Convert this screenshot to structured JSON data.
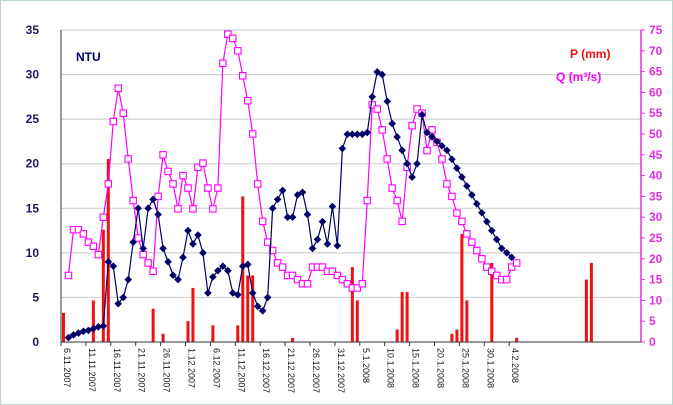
{
  "chart_data": {
    "type": "line",
    "x_start": "6.11.2007",
    "x_tick_labels": [
      "6.11.2007",
      "11.11.2007",
      "16.11.2007",
      "21.11.2007",
      "26.11.2007",
      "1.12.2007",
      "6.12.2007",
      "11.12.2007",
      "16.12.2007",
      "21.12.2007",
      "26.12.2007",
      "31.12.2007",
      "5.1.2008",
      "10.1.2008",
      "15.1.2008",
      "20.1.2008",
      "25.1.2008",
      "30.1.2008",
      "4.2.2008"
    ],
    "y_left": {
      "label": "NTU",
      "range": [
        0,
        35
      ],
      "ticks": [
        0,
        5,
        10,
        15,
        20,
        25,
        30,
        35
      ]
    },
    "y_right": {
      "labels": [
        "P (mm)",
        "Q (m³/s)"
      ],
      "range": [
        0,
        75
      ],
      "ticks": [
        0,
        5,
        10,
        15,
        20,
        25,
        30,
        35,
        40,
        45,
        50,
        55,
        60,
        65,
        70,
        75
      ]
    },
    "colors": {
      "ntu": "#000066",
      "precip": "#ee1111",
      "discharge": "#ff00ff",
      "gridline": "#c8c8c8",
      "axis_left": "#1a1a5e",
      "axis_right": "#e030e0"
    },
    "series": [
      {
        "name": "NTU",
        "axis": "left",
        "type": "line",
        "points": [
          [
            1,
            0.5
          ],
          [
            2,
            0.8
          ],
          [
            3,
            1.0
          ],
          [
            4,
            1.2
          ],
          [
            5,
            1.3
          ],
          [
            6,
            1.5
          ],
          [
            7,
            1.7
          ],
          [
            8,
            1.8
          ],
          [
            9,
            9.0
          ],
          [
            10,
            8.5
          ],
          [
            11,
            4.3
          ],
          [
            12,
            5.0
          ],
          [
            13,
            7.0
          ],
          [
            14,
            11.2
          ],
          [
            15,
            15.0
          ],
          [
            16,
            10.5
          ],
          [
            17,
            15.0
          ],
          [
            18,
            16.0
          ],
          [
            19,
            14.3
          ],
          [
            20,
            10.5
          ],
          [
            21,
            9.0
          ],
          [
            22,
            7.5
          ],
          [
            23,
            7.0
          ],
          [
            24,
            9.5
          ],
          [
            25,
            12.5
          ],
          [
            26,
            11.0
          ],
          [
            27,
            12.0
          ],
          [
            28,
            10.0
          ],
          [
            29,
            5.5
          ],
          [
            30,
            7.3
          ],
          [
            31,
            8.0
          ],
          [
            32,
            8.5
          ],
          [
            33,
            8.0
          ],
          [
            34,
            5.5
          ],
          [
            35,
            5.3
          ],
          [
            36,
            8.5
          ],
          [
            37,
            8.7
          ],
          [
            38,
            5.5
          ],
          [
            39,
            4.0
          ],
          [
            40,
            3.5
          ],
          [
            41,
            5.0
          ],
          [
            42,
            15.0
          ],
          [
            43,
            16.0
          ],
          [
            44,
            17.0
          ],
          [
            45,
            14.0
          ],
          [
            46,
            14.0
          ],
          [
            47,
            16.5
          ],
          [
            48,
            16.8
          ],
          [
            49,
            14.3
          ],
          [
            50,
            10.5
          ],
          [
            51,
            11.5
          ],
          [
            52,
            13.5
          ],
          [
            53,
            11.0
          ],
          [
            54,
            15.2
          ],
          [
            55,
            10.8
          ],
          [
            56,
            21.7
          ],
          [
            57,
            23.3
          ],
          [
            58,
            23.3
          ],
          [
            59,
            23.3
          ],
          [
            60,
            23.3
          ],
          [
            61,
            23.5
          ],
          [
            62,
            27.5
          ],
          [
            63,
            30.3
          ],
          [
            64,
            30.0
          ],
          [
            65,
            27.0
          ],
          [
            66,
            24.5
          ],
          [
            67,
            23.0
          ],
          [
            68,
            21.5
          ],
          [
            69,
            20.0
          ],
          [
            70,
            18.5
          ],
          [
            71,
            20.0
          ],
          [
            72,
            25.5
          ],
          [
            73,
            23.5
          ],
          [
            74,
            23.0
          ],
          [
            75,
            22.5
          ],
          [
            76,
            22.0
          ],
          [
            77,
            21.5
          ],
          [
            78,
            20.5
          ],
          [
            79,
            19.5
          ],
          [
            80,
            18.5
          ],
          [
            81,
            17.5
          ],
          [
            82,
            16.5
          ],
          [
            83,
            15.5
          ],
          [
            84,
            14.5
          ],
          [
            85,
            13.5
          ],
          [
            86,
            12.5
          ],
          [
            87,
            11.5
          ],
          [
            88,
            10.5
          ],
          [
            89,
            10.0
          ],
          [
            90,
            9.5
          ]
        ]
      },
      {
        "name": "Q (m³/s)",
        "axis": "right",
        "type": "line",
        "points": [
          [
            1,
            16
          ],
          [
            2,
            27
          ],
          [
            3,
            27
          ],
          [
            4,
            26
          ],
          [
            5,
            24
          ],
          [
            6,
            23
          ],
          [
            7,
            21
          ],
          [
            8,
            30
          ],
          [
            9,
            38
          ],
          [
            10,
            53
          ],
          [
            11,
            61
          ],
          [
            12,
            55
          ],
          [
            13,
            44
          ],
          [
            14,
            34
          ],
          [
            15,
            25
          ],
          [
            16,
            21
          ],
          [
            17,
            19
          ],
          [
            18,
            17
          ],
          [
            19,
            35
          ],
          [
            20,
            45
          ],
          [
            21,
            41
          ],
          [
            22,
            38
          ],
          [
            23,
            32
          ],
          [
            24,
            40
          ],
          [
            25,
            37
          ],
          [
            26,
            32
          ],
          [
            27,
            42
          ],
          [
            28,
            43
          ],
          [
            29,
            37
          ],
          [
            30,
            32
          ],
          [
            31,
            37
          ],
          [
            32,
            67
          ],
          [
            33,
            74
          ],
          [
            34,
            73
          ],
          [
            35,
            70
          ],
          [
            36,
            64
          ],
          [
            37,
            58
          ],
          [
            38,
            50
          ],
          [
            39,
            38
          ],
          [
            40,
            29
          ],
          [
            41,
            24
          ],
          [
            42,
            22
          ],
          [
            43,
            19
          ],
          [
            44,
            18
          ],
          [
            45,
            16
          ],
          [
            46,
            16
          ],
          [
            47,
            15
          ],
          [
            48,
            14
          ],
          [
            49,
            14
          ],
          [
            50,
            18
          ],
          [
            51,
            18
          ],
          [
            52,
            18
          ],
          [
            53,
            17
          ],
          [
            54,
            17
          ],
          [
            55,
            16
          ],
          [
            56,
            15
          ],
          [
            57,
            14
          ],
          [
            58,
            13
          ],
          [
            59,
            13
          ],
          [
            60,
            14
          ],
          [
            61,
            34
          ],
          [
            62,
            57
          ],
          [
            63,
            56
          ],
          [
            64,
            51
          ],
          [
            65,
            44
          ],
          [
            66,
            37
          ],
          [
            67,
            34
          ],
          [
            68,
            29
          ],
          [
            69,
            42
          ],
          [
            70,
            52
          ],
          [
            71,
            56
          ],
          [
            72,
            55
          ],
          [
            73,
            46
          ],
          [
            74,
            51
          ],
          [
            75,
            48
          ],
          [
            76,
            44
          ],
          [
            77,
            38
          ],
          [
            78,
            35
          ],
          [
            79,
            31
          ],
          [
            80,
            29
          ],
          [
            81,
            26
          ],
          [
            82,
            24
          ],
          [
            83,
            22
          ],
          [
            84,
            20
          ],
          [
            85,
            18
          ],
          [
            86,
            17
          ],
          [
            87,
            16
          ],
          [
            88,
            15
          ],
          [
            89,
            15
          ],
          [
            90,
            18
          ],
          [
            91,
            19
          ]
        ]
      },
      {
        "name": "P (mm)",
        "axis": "right",
        "type": "bar",
        "points": [
          [
            0,
            7
          ],
          [
            6,
            10
          ],
          [
            8,
            27
          ],
          [
            9,
            44
          ],
          [
            18,
            8
          ],
          [
            20,
            2
          ],
          [
            25,
            5
          ],
          [
            26,
            13
          ],
          [
            30,
            4
          ],
          [
            35,
            4
          ],
          [
            36,
            35
          ],
          [
            37,
            16
          ],
          [
            38,
            16
          ],
          [
            46,
            1
          ],
          [
            58,
            18
          ],
          [
            59,
            10
          ],
          [
            67,
            3
          ],
          [
            68,
            12
          ],
          [
            69,
            12
          ],
          [
            78,
            2
          ],
          [
            79,
            3
          ],
          [
            80,
            26
          ],
          [
            81,
            10
          ],
          [
            86,
            19
          ],
          [
            91,
            1
          ],
          [
            105,
            15
          ],
          [
            106,
            19
          ]
        ]
      }
    ]
  }
}
